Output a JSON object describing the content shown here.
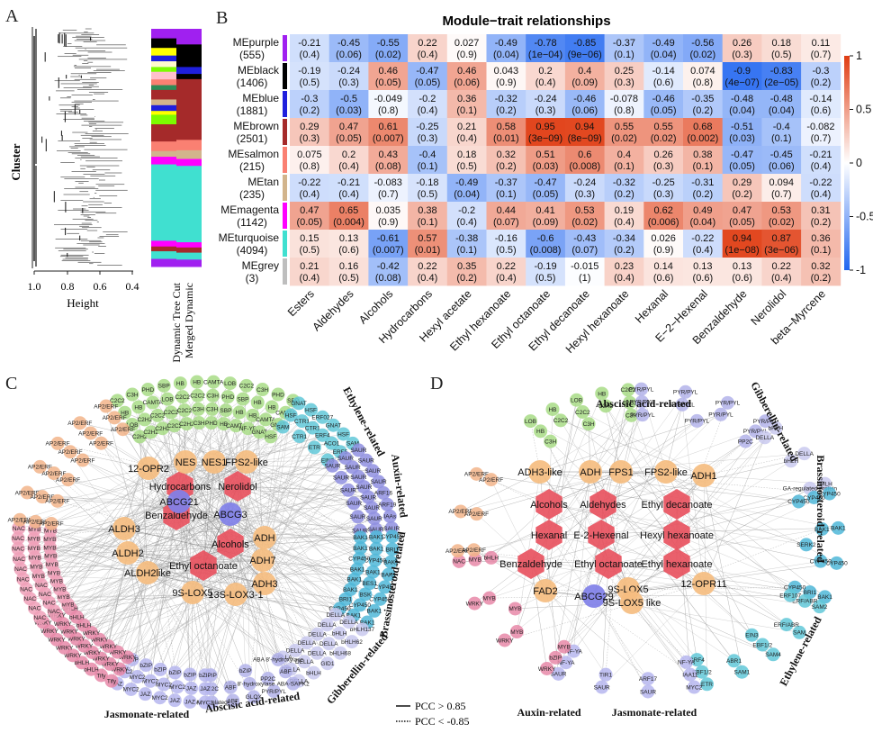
{
  "panel_labels": {
    "a": "A",
    "b": "B",
    "c": "C",
    "d": "D"
  },
  "dendrogram": {
    "ylabel": "Cluster",
    "xlabel": "Height",
    "ticks": [
      "1.0",
      "0.8",
      "0.6",
      "0.4"
    ],
    "track_labels": [
      "Dynamic Tree Cut",
      "Merged Dynamic"
    ]
  },
  "colorbar": {
    "ticks": [
      "1",
      "0.5",
      "0",
      "-0.5",
      "-1"
    ]
  },
  "legend": {
    "solid": "PCC > 0.85",
    "dotted": "PCC < -0.85"
  },
  "chart_data": {
    "type": "heatmap",
    "title": "Module−trait relationships",
    "modules": [
      {
        "name": "MEpurple",
        "size": "(555)",
        "color": "#a020f0"
      },
      {
        "name": "MEblack",
        "size": "(1406)",
        "color": "#000000"
      },
      {
        "name": "MEblue",
        "size": "(1881)",
        "color": "#1f1fdd"
      },
      {
        "name": "MEbrown",
        "size": "(2501)",
        "color": "#a52a2a"
      },
      {
        "name": "MEsalmon",
        "size": "(215)",
        "color": "#fa8072"
      },
      {
        "name": "MEtan",
        "size": "(235)",
        "color": "#d2b48c"
      },
      {
        "name": "MEmagenta",
        "size": "(1142)",
        "color": "#ff00ff"
      },
      {
        "name": "MEturquoise",
        "size": "(4094)",
        "color": "#40e0d0"
      },
      {
        "name": "MEgrey",
        "size": "(3)",
        "color": "#bebebe"
      }
    ],
    "traits": [
      "Esters",
      "Aldehydes",
      "Alcohols",
      "Hydrocarbons",
      "Hexyl acetate",
      "Ethyl hexanoate",
      "Ethyl octanoate",
      "Ethyl decanoate",
      "Hexyl hexanoate",
      "Hexanal",
      "E−2−Hexenal",
      "Benzaldehyde",
      "Nerolidol",
      "beta−Myrcene"
    ],
    "values": [
      [
        -0.21,
        -0.45,
        -0.55,
        0.22,
        0.027,
        -0.49,
        -0.78,
        -0.85,
        -0.37,
        -0.49,
        -0.56,
        0.26,
        0.18,
        0.11
      ],
      [
        -0.19,
        -0.24,
        0.46,
        -0.47,
        0.46,
        0.043,
        0.2,
        0.4,
        0.25,
        -0.14,
        0.074,
        -0.9,
        -0.83,
        -0.3
      ],
      [
        -0.3,
        -0.5,
        -0.049,
        -0.2,
        0.36,
        -0.32,
        -0.24,
        -0.46,
        -0.078,
        -0.46,
        -0.35,
        -0.48,
        -0.48,
        -0.14
      ],
      [
        0.29,
        0.47,
        0.61,
        -0.25,
        0.21,
        0.58,
        0.95,
        0.94,
        0.55,
        0.55,
        0.68,
        -0.51,
        -0.4,
        -0.082
      ],
      [
        0.075,
        0.2,
        0.43,
        -0.4,
        0.18,
        0.32,
        0.51,
        0.6,
        0.4,
        0.26,
        0.38,
        -0.47,
        -0.45,
        -0.21
      ],
      [
        -0.22,
        -0.21,
        -0.083,
        -0.18,
        -0.49,
        -0.37,
        -0.47,
        -0.24,
        -0.32,
        -0.25,
        -0.31,
        0.29,
        0.094,
        -0.22
      ],
      [
        0.47,
        0.65,
        0.035,
        0.38,
        -0.2,
        0.44,
        0.41,
        0.53,
        0.19,
        0.62,
        0.49,
        0.47,
        0.53,
        0.31
      ],
      [
        0.15,
        0.13,
        -0.61,
        0.57,
        -0.38,
        -0.16,
        -0.6,
        -0.43,
        -0.34,
        0.026,
        -0.22,
        0.94,
        0.87,
        0.36
      ],
      [
        0.21,
        0.16,
        -0.42,
        0.22,
        0.35,
        0.22,
        -0.19,
        -0.015,
        0.23,
        0.14,
        0.13,
        0.13,
        0.22,
        0.32
      ]
    ],
    "pvalues": [
      [
        "(0.4)",
        "(0.06)",
        "(0.02)",
        "(0.4)",
        "(0.9)",
        "(0.04)",
        "(1e−04)",
        "(9e−06)",
        "(0.1)",
        "(0.04)",
        "(0.02)",
        "(0.3)",
        "(0.5)",
        "(0.7)"
      ],
      [
        "(0.5)",
        "(0.3)",
        "(0.05)",
        "(0.05)",
        "(0.06)",
        "(0.9)",
        "(0.4)",
        "(0.09)",
        "(0.3)",
        "(0.6)",
        "(0.8)",
        "(4e−07)",
        "(2e−05)",
        "(0.2)"
      ],
      [
        "(0.2)",
        "(0.03)",
        "(0.8)",
        "(0.4)",
        "(0.1)",
        "(0.2)",
        "(0.3)",
        "(0.06)",
        "(0.8)",
        "(0.05)",
        "(0.2)",
        "(0.04)",
        "(0.04)",
        "(0.6)"
      ],
      [
        "(0.3)",
        "(0.05)",
        "(0.007)",
        "(0.3)",
        "(0.4)",
        "(0.01)",
        "(3e−09)",
        "(8e−09)",
        "(0.02)",
        "(0.02)",
        "(0.002)",
        "(0.03)",
        "(0.1)",
        "(0.7)"
      ],
      [
        "(0.8)",
        "(0.4)",
        "(0.08)",
        "(0.1)",
        "(0.5)",
        "(0.2)",
        "(0.03)",
        "(0.008)",
        "(0.1)",
        "(0.3)",
        "(0.1)",
        "(0.05)",
        "(0.06)",
        "(0.4)"
      ],
      [
        "(0.4)",
        "(0.4)",
        "(0.7)",
        "(0.5)",
        "(0.04)",
        "(0.1)",
        "(0.05)",
        "(0.3)",
        "(0.2)",
        "(0.3)",
        "(0.2)",
        "(0.2)",
        "(0.7)",
        "(0.4)"
      ],
      [
        "(0.05)",
        "(0.004)",
        "(0.9)",
        "(0.1)",
        "(0.4)",
        "(0.07)",
        "(0.09)",
        "(0.02)",
        "(0.4)",
        "(0.006)",
        "(0.04)",
        "(0.05)",
        "(0.02)",
        "(0.2)"
      ],
      [
        "(0.5)",
        "(0.6)",
        "(0.007)",
        "(0.01)",
        "(0.1)",
        "(0.5)",
        "(0.008)",
        "(0.07)",
        "(0.2)",
        "(0.9)",
        "(0.4)",
        "(1e−08)",
        "(3e−06)",
        "(0.1)"
      ],
      [
        "(0.4)",
        "(0.5)",
        "(0.08)",
        "(0.4)",
        "(0.2)",
        "(0.4)",
        "(0.5)",
        "(1)",
        "(0.4)",
        "(0.6)",
        "(0.6)",
        "(0.6)",
        "(0.4)",
        "(0.2)"
      ]
    ],
    "scale": [
      -1,
      1
    ],
    "low_color": "#2166f0",
    "mid_color": "#ffffff",
    "high_color": "#e03c12"
  },
  "network_c": {
    "colors": {
      "ethylene": "#62c8d8",
      "auxin": "#8f8fe0",
      "brass": "#4fb7d8",
      "gib": "#c9c9ef",
      "aba": "#b3b3ea",
      "jas": "#b6b6ee",
      "wrky": "#e888a8",
      "tf": "#f0a0b8",
      "ap2": "#f2b48a",
      "green": "#a8dc86",
      "metab": "#e8535f",
      "gene": "#f5bd80",
      "blue": "#8080e8"
    },
    "groups": [
      {
        "cat": "green",
        "labels": [
          "C2C2",
          "C3H",
          "PHD",
          "SBP",
          "HB",
          "HB",
          "CAMTA",
          "LOB",
          "C2C2",
          "C3H",
          "PHD",
          "SBP",
          "HB",
          "HB",
          "CAMTA",
          "LOB",
          "C2C2",
          "C2C2",
          "C3H",
          "PHD",
          "SBP",
          "HB",
          "HB",
          "CAMTA",
          "LOB",
          "C2H2",
          "C2C2",
          "C2C2",
          "C2C2",
          "C3H",
          "C3H",
          "SBP",
          "HB",
          "HB",
          "CAMTA",
          "GNAT",
          "C2H2",
          "C2H2",
          "C2H2",
          "C2C2",
          "C2H2",
          "C3H",
          "PHD",
          "HB",
          "CAMTA",
          "NF-YB",
          "GNAT",
          "HSF"
        ]
      },
      {
        "cat": "ethylene",
        "labels": [
          "GNAT",
          "HSF",
          "ERF027",
          "GNAT",
          "HSF",
          "SAM",
          "HSF",
          "CTR1",
          "CTR1",
          "ERF4",
          "ACO1",
          "ERF5",
          "SAM",
          "CTR1",
          "ETR",
          "EIN3"
        ]
      },
      {
        "cat": "auxin",
        "labels": [
          "SAUR",
          "SAUR",
          "SAUR",
          "SAUR",
          "ARF16",
          "ARF19",
          "IAAs",
          "SAUR",
          "SAUR",
          "SAUR",
          "SAUR",
          "SAUR",
          "SAUR",
          "SAUR",
          "SAUR",
          "SAUR",
          "SAUR",
          "SAUR",
          "SAUR",
          "SAUR",
          "SAUR",
          "SAUR"
        ]
      },
      {
        "cat": "brass",
        "labels": [
          "CYP450",
          "BRI1",
          "BAK1",
          "BAK1",
          "CYP450",
          "CYP450",
          "BAK1",
          "BAK1",
          "BAK1",
          "BAK1",
          "CYP450",
          "BAK1",
          "BES1",
          "BSK",
          "CYP450",
          "BAK1",
          "BAK1",
          "BAK1",
          "CYP450",
          "BAK1",
          "BAK1",
          "BAK1",
          "BRI1",
          "CYP450"
        ]
      },
      {
        "cat": "gib",
        "labels": [
          "bHLH137",
          "bHLH62",
          "bHLH68",
          "GID1",
          "bHLH",
          "DELLA",
          "DELLA",
          "bHLH",
          "DELLA",
          "DELLA",
          "DELLA",
          "DELLA",
          "DELLA",
          "DELLA",
          "DELLA",
          "DELLA",
          "DELLA",
          "DELLA"
        ]
      },
      {
        "cat": "aba",
        "labels": [
          "ABA-SAPK2",
          "PYR/PYL",
          "GLOX",
          "ABF",
          "ABA-related",
          "ABF",
          "PP2C",
          "ABA 8'-hydroxylase",
          "ABF",
          "PP2C",
          "ABA 8'-hydroxylase",
          "bZIP",
          "bZIP"
        ]
      },
      {
        "cat": "jas",
        "labels": [
          "MYC2",
          "JAZ",
          "JAZ",
          "MYC2",
          "JAZ",
          "MYC2",
          "JAZ",
          "JAZ",
          "JAZ",
          "MYC2",
          "MYC2",
          "MYC2",
          "MYC2",
          "MYC2",
          "bZIP",
          "bZIP",
          "bZIP",
          "bZIP",
          "bZIP",
          "bZIP"
        ]
      },
      {
        "cat": "wrky",
        "labels": [
          "Tify",
          "Tify",
          "bHLH",
          "bHLH",
          "WRKY",
          "WRKY",
          "WRKY",
          "WRKY",
          "WRKY",
          "WRKY",
          "WRKY",
          "WRKY",
          "WRKY",
          "WRKY",
          "WRKY",
          "WRKY",
          "WRKY",
          "WRKY",
          "WRKY",
          "WRKY",
          "WRKY",
          "WRKY",
          "WRKY",
          "bHLH",
          "bHLH",
          "bHLH"
        ]
      },
      {
        "cat": "tf",
        "labels": [
          "NAC",
          "NAC",
          "NAC",
          "NAC",
          "NAC",
          "NAC",
          "NAC",
          "NAC",
          "NAC",
          "NAC",
          "NAC",
          "NAC",
          "NAC",
          "NAC",
          "MYB",
          "MYB",
          "MYB",
          "MYB",
          "MYB",
          "MYB",
          "MYB",
          "MYB",
          "MYB",
          "MYB",
          "MYB",
          "MYB",
          "MYB",
          "MYB",
          "MYB",
          "MYB"
        ]
      },
      {
        "cat": "ap2",
        "labels": [
          "AP2/ERF",
          "AP2/ERF",
          "AP2/ERF",
          "AP2/ERF",
          "AP2/ERF",
          "AP2/ERF",
          "AP2/ERF",
          "AP2/ERF",
          "AP2/ERF",
          "AP2/ERF",
          "AP2/ERF",
          "AP2/ERF",
          "AP2/ERF",
          "AP2/ERF",
          "AP2/ERF",
          "AP2/ERF",
          "AP2/ERF",
          "AP2/ERF"
        ]
      }
    ],
    "hubs": [
      {
        "label": "Hydrocarbons",
        "kind": "metab"
      },
      {
        "label": "Nerolidol",
        "kind": "metab"
      },
      {
        "label": "Benzaldehyde",
        "kind": "metab"
      },
      {
        "label": "Alcohols",
        "kind": "metab"
      },
      {
        "label": "Ethyl octanoate",
        "kind": "metab"
      },
      {
        "label": "12-OPR2",
        "kind": "gene"
      },
      {
        "label": "NES",
        "kind": "gene"
      },
      {
        "label": "NES1",
        "kind": "gene"
      },
      {
        "label": "FPS2-like",
        "kind": "gene"
      },
      {
        "label": "ABCG21",
        "kind": "blue"
      },
      {
        "label": "ABCG3",
        "kind": "blue"
      },
      {
        "label": "ALDH3",
        "kind": "gene"
      },
      {
        "label": "ADH",
        "kind": "gene"
      },
      {
        "label": "ALDH2",
        "kind": "gene"
      },
      {
        "label": "ADH7",
        "kind": "gene"
      },
      {
        "label": "ALDH2like",
        "kind": "gene"
      },
      {
        "label": "ADH3",
        "kind": "gene"
      },
      {
        "label": "9S-LOX5",
        "kind": "gene"
      },
      {
        "label": "13S-LOX3-1",
        "kind": "gene"
      }
    ],
    "categories": [
      "Ethylene-related",
      "Auxin-related",
      "Brassinosteroid-related",
      "Gibberellin-related",
      "Abscisic acid-related",
      "Jasmonate-related"
    ]
  },
  "network_d": {
    "groups": [
      {
        "cat": "green",
        "labels": [
          "LOB",
          "HB",
          "LOB",
          "HB",
          "C2C2",
          "HB",
          "C2C2",
          "C2C2",
          "C2H2",
          "C2C2",
          "C3H",
          "C3H",
          "C3H"
        ]
      },
      {
        "cat": "aba",
        "labels": [
          "PYR/PYL",
          "PYR/PYL",
          "PYR/PYL",
          "PYR/PYL",
          "PYR/PYL",
          "PYR/PYL",
          "PYR/PYL",
          "PYR/PYL",
          "PYR/PYL",
          "PYR/PYL",
          "PP2C"
        ]
      },
      {
        "cat": "gib",
        "labels": [
          "bHLH",
          "DELLA",
          "bHLH",
          "DELLA",
          "bHLH",
          "GA-regulated protein"
        ]
      },
      {
        "cat": "brass",
        "labels": [
          "CYP450",
          "BAK1",
          "CYP450",
          "BAK1",
          "CYP450",
          "BAK1",
          "CYP450",
          "BRI1",
          "CYP450",
          "SERK2",
          "CYP450"
        ]
      },
      {
        "cat": "ethylene",
        "labels": [
          "SAM2",
          "SAM",
          "SAM4",
          "SAM1",
          "ETR",
          "ERF/ABR",
          "ERF/ABR",
          "EBF1/2",
          "ABR1",
          "EBF1/2",
          "ERF107",
          "EIN3",
          "CRF4"
        ]
      },
      {
        "cat": "jas",
        "labels": [
          "MYC2",
          "SAUR",
          "SAUR",
          "SAUR",
          "IAA11",
          "ARF17",
          "TIR1",
          "NF-YA",
          "NF-YA",
          "NF-YA"
        ]
      },
      {
        "cat": "wrky",
        "labels": [
          "WRKY",
          "WRKY",
          "WRKY",
          "NAC",
          "bZIP",
          "MYB",
          "MYB",
          "MYB",
          "MYB",
          "MYB",
          "bHLH"
        ]
      },
      {
        "cat": "ap2",
        "labels": [
          "AP2/ERF",
          "AP2/ERF",
          "AP2/ERF",
          "AP2/ERF",
          "AP2/ERF",
          "AP2/ERF"
        ]
      }
    ],
    "hubs": [
      {
        "label": "ADH3-like",
        "kind": "gene"
      },
      {
        "label": "ADH",
        "kind": "gene"
      },
      {
        "label": "FPS1",
        "kind": "gene"
      },
      {
        "label": "FPS2-like",
        "kind": "gene"
      },
      {
        "label": "ADH1",
        "kind": "gene"
      },
      {
        "label": "Alcohols",
        "kind": "metab"
      },
      {
        "label": "Aldehydes",
        "kind": "metab"
      },
      {
        "label": "Ethyl decanoate",
        "kind": "metab"
      },
      {
        "label": "Hexanal",
        "kind": "metab"
      },
      {
        "label": "E-2-Hexenal",
        "kind": "metab"
      },
      {
        "label": "Hexyl hexanoate",
        "kind": "metab"
      },
      {
        "label": "Benzaldehyde",
        "kind": "metab"
      },
      {
        "label": "Ethyl octanoate",
        "kind": "metab"
      },
      {
        "label": "Ethyl hexanoate",
        "kind": "metab"
      },
      {
        "label": "FAD2",
        "kind": "gene"
      },
      {
        "label": "ABCG29",
        "kind": "blue"
      },
      {
        "label": "9S-LOX5",
        "kind": "gene"
      },
      {
        "label": "9S-LOX5 like",
        "kind": "gene"
      },
      {
        "label": "12-OPR11",
        "kind": "gene"
      }
    ],
    "categories": [
      "Abscisic acid-related",
      "Gibberellin-related",
      "Brassinosteroid-related",
      "Ethylene-related",
      "Auxin-related",
      "Jasmonate-related"
    ]
  }
}
